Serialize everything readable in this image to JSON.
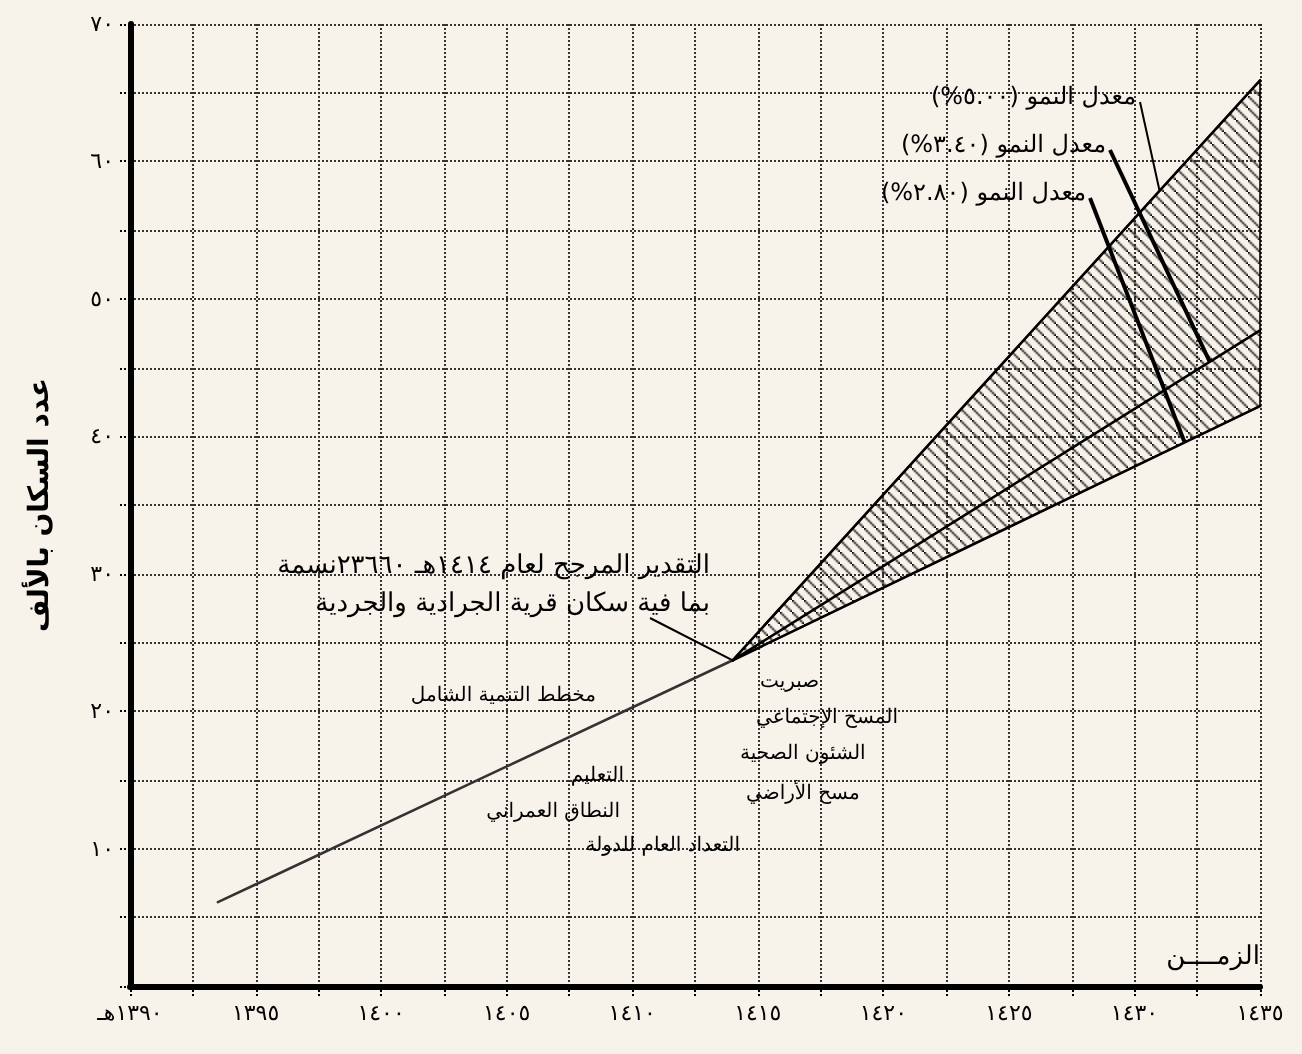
{
  "chart_data": {
    "type": "line",
    "xlabel": "الزمــــن",
    "ylabel": "عدد السكان بالألف",
    "xlim": [
      1390,
      1435
    ],
    "ylim": [
      0,
      70
    ],
    "xticks": [
      {
        "value": 1390,
        "label": "١٣٩٠هـ"
      },
      {
        "value": 1392.5,
        "label": null
      },
      {
        "value": 1395,
        "label": "١٣٩٥"
      },
      {
        "value": 1397.5,
        "label": null
      },
      {
        "value": 1400,
        "label": "١٤٠٠"
      },
      {
        "value": 1402.5,
        "label": null
      },
      {
        "value": 1405,
        "label": "١٤٠٥"
      },
      {
        "value": 1407.5,
        "label": null
      },
      {
        "value": 1410,
        "label": "١٤١٠"
      },
      {
        "value": 1412.5,
        "label": null
      },
      {
        "value": 1415,
        "label": "١٤١٥"
      },
      {
        "value": 1417.5,
        "label": null
      },
      {
        "value": 1420,
        "label": "١٤٢٠"
      },
      {
        "value": 1422.5,
        "label": null
      },
      {
        "value": 1425,
        "label": "١٤٢٥"
      },
      {
        "value": 1427.5,
        "label": null
      },
      {
        "value": 1430,
        "label": "١٤٣٠"
      },
      {
        "value": 1432.5,
        "label": null
      },
      {
        "value": 1435,
        "label": "١٤٣٥"
      }
    ],
    "yticks": [
      {
        "value": 0,
        "label": null
      },
      {
        "value": 5,
        "label": null
      },
      {
        "value": 10,
        "label": "١٠"
      },
      {
        "value": 15,
        "label": null
      },
      {
        "value": 20,
        "label": "٢٠"
      },
      {
        "value": 25,
        "label": null
      },
      {
        "value": 30,
        "label": "٣٠"
      },
      {
        "value": 35,
        "label": null
      },
      {
        "value": 40,
        "label": "٤٠"
      },
      {
        "value": 45,
        "label": null
      },
      {
        "value": 50,
        "label": "٥٠"
      },
      {
        "value": 55,
        "label": null
      },
      {
        "value": 60,
        "label": "٦٠"
      },
      {
        "value": 65,
        "label": null
      },
      {
        "value": 70,
        "label": "٧٠"
      }
    ],
    "grid": true,
    "marker": "none",
    "line_style": "solid",
    "series": [
      {
        "color": "#333333",
        "x": [
          1393.5,
          1414
        ],
        "values": [
          6.1,
          23.7
        ]
      },
      {
        "name": "معدل النمو (٥.٠٠%)",
        "color": "#000000",
        "x": [
          1414,
          1435
        ],
        "values": [
          23.7,
          65.9
        ]
      },
      {
        "name": "معدل النمو (٣.٤٠%)",
        "color": "#000000",
        "x": [
          1414,
          1435
        ],
        "values": [
          23.7,
          47.7
        ],
        "lower": [
          23.7,
          42.2
        ],
        "upper": [
          23.7,
          65.9
        ]
      },
      {
        "name": "معدل النمو (٢.٨٠%)",
        "color": "#000000",
        "x": [
          1414,
          1435
        ],
        "values": [
          23.7,
          42.2
        ]
      }
    ],
    "annotations": [
      "التقدير المرجح لعام ١٤١٤هـ ٢٣٦٦٠نسمة",
      {
        "text": "بما فية سكان قرية الجرادية والجردية",
        "x": 1414,
        "y": 23.7
      },
      "صبريت",
      "المسح الإجتماعي",
      "الشئون الصحية",
      "مسح الأراضي",
      "مخطط التنمية الشامل",
      "التعليم",
      "النطاق العمراني",
      "التعداد العام للدولة"
    ]
  }
}
